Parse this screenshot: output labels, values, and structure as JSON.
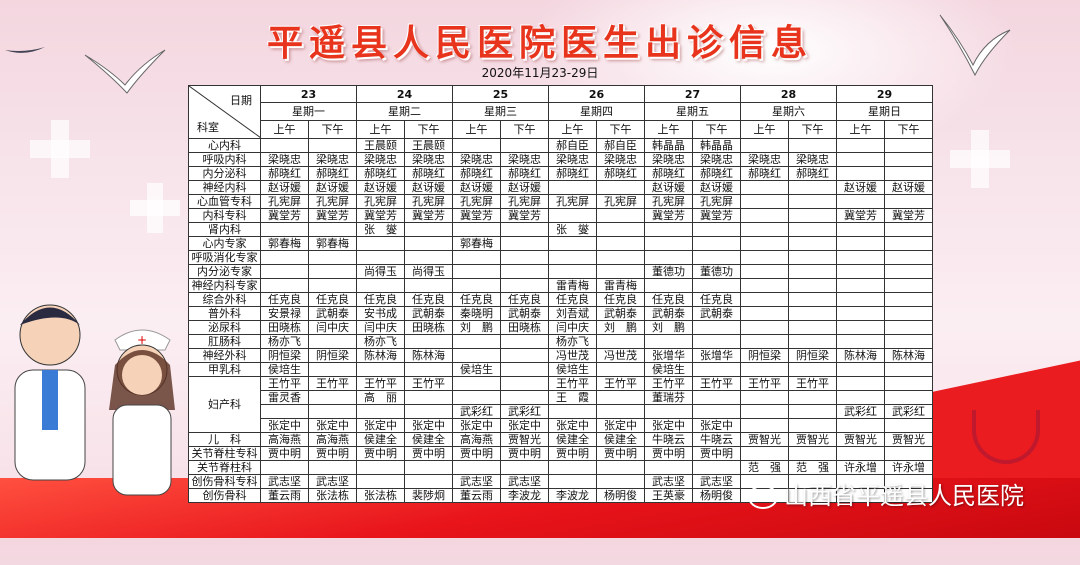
{
  "title": "平遥县人民医院医生出诊信息",
  "subtitle": "2020年11月23-29日",
  "corner": {
    "top": "日期",
    "bottom": "科室"
  },
  "dates": [
    "23",
    "24",
    "25",
    "26",
    "27",
    "28",
    "29"
  ],
  "weekdays": [
    "星期一",
    "星期二",
    "星期三",
    "星期四",
    "星期五",
    "星期六",
    "星期日"
  ],
  "halves": [
    "上午",
    "下午"
  ],
  "rows": [
    {
      "dept": "心内科",
      "cells": [
        "",
        "",
        "王晨颐",
        "王晨颐",
        "",
        "",
        "郝自臣",
        "郝自臣",
        "韩晶晶",
        "韩晶晶",
        "",
        "",
        "",
        ""
      ]
    },
    {
      "dept": "呼吸内科",
      "cells": [
        "梁晓忠",
        "梁晓忠",
        "梁晓忠",
        "梁晓忠",
        "梁晓忠",
        "梁晓忠",
        "梁晓忠",
        "梁晓忠",
        "梁晓忠",
        "梁晓忠",
        "梁晓忠",
        "梁晓忠",
        "",
        ""
      ]
    },
    {
      "dept": "内分泌科",
      "cells": [
        "郝晓红",
        "郝晓红",
        "郝晓红",
        "郝晓红",
        "郝晓红",
        "郝晓红",
        "郝晓红",
        "郝晓红",
        "郝晓红",
        "郝晓红",
        "郝晓红",
        "郝晓红",
        "",
        ""
      ]
    },
    {
      "dept": "神经内科",
      "cells": [
        "赵讶媛",
        "赵讶媛",
        "赵讶媛",
        "赵讶媛",
        "赵讶媛",
        "赵讶媛",
        "",
        "",
        "赵讶媛",
        "赵讶媛",
        "",
        "",
        "赵讶媛",
        "赵讶媛"
      ]
    },
    {
      "dept": "心血管专科",
      "cells": [
        "孔宪屏",
        "孔宪屏",
        "孔宪屏",
        "孔宪屏",
        "孔宪屏",
        "孔宪屏",
        "孔宪屏",
        "孔宪屏",
        "孔宪屏",
        "孔宪屏",
        "",
        "",
        "",
        ""
      ]
    },
    {
      "dept": "内科专科",
      "cells": [
        "冀堂芳",
        "冀堂芳",
        "冀堂芳",
        "冀堂芳",
        "冀堂芳",
        "冀堂芳",
        "",
        "",
        "冀堂芳",
        "冀堂芳",
        "",
        "",
        "冀堂芳",
        "冀堂芳"
      ]
    },
    {
      "dept": "肾内科",
      "cells": [
        "",
        "",
        "张　燮",
        "",
        "",
        "",
        "张　燮",
        "",
        "",
        "",
        "",
        "",
        "",
        ""
      ]
    },
    {
      "dept": "心内专家",
      "cells": [
        "郭春梅",
        "郭春梅",
        "",
        "",
        "郭春梅",
        "",
        "",
        "",
        "",
        "",
        "",
        "",
        "",
        ""
      ]
    },
    {
      "dept": "呼吸消化专家",
      "cells": [
        "",
        "",
        "",
        "",
        "",
        "",
        "",
        "",
        "",
        "",
        "",
        "",
        "",
        ""
      ]
    },
    {
      "dept": "内分泌专家",
      "cells": [
        "",
        "",
        "尚得玉",
        "尚得玉",
        "",
        "",
        "",
        "",
        "董德功",
        "董德功",
        "",
        "",
        "",
        ""
      ]
    },
    {
      "dept": "神经内科专家",
      "cells": [
        "",
        "",
        "",
        "",
        "",
        "",
        "雷青梅",
        "雷青梅",
        "",
        "",
        "",
        "",
        "",
        ""
      ]
    },
    {
      "dept": "综合外科",
      "cells": [
        "任克良",
        "任克良",
        "任克良",
        "任克良",
        "任克良",
        "任克良",
        "任克良",
        "任克良",
        "任克良",
        "任克良",
        "",
        "",
        "",
        ""
      ]
    },
    {
      "dept": "普外科",
      "cells": [
        "安景禄",
        "武朝泰",
        "安书成",
        "武朝泰",
        "秦晓明",
        "武朝泰",
        "刘吾斌",
        "武朝泰",
        "武朝泰",
        "武朝泰",
        "",
        "",
        "",
        ""
      ]
    },
    {
      "dept": "泌尿科",
      "cells": [
        "田晓栋",
        "闫中庆",
        "闫中庆",
        "田晓栋",
        "刘　鹏",
        "田晓栋",
        "闫中庆",
        "刘　鹏",
        "刘　鹏",
        "",
        "",
        "",
        "",
        ""
      ]
    },
    {
      "dept": "肛肠科",
      "cells": [
        "杨亦飞",
        "",
        "杨亦飞",
        "",
        "",
        "",
        "杨亦飞",
        "",
        "",
        "",
        "",
        "",
        "",
        ""
      ]
    },
    {
      "dept": "神经外科",
      "cells": [
        "阴恒梁",
        "阴恒梁",
        "陈林海",
        "陈林海",
        "",
        "",
        "冯世茂",
        "冯世茂",
        "张增华",
        "张增华",
        "阴恒梁",
        "阴恒梁",
        "陈林海",
        "陈林海"
      ]
    },
    {
      "dept": "甲乳科",
      "cells": [
        "侯培生",
        "",
        "",
        "",
        "侯培生",
        "",
        "侯培生",
        "",
        "侯培生",
        "",
        "",
        "",
        "",
        ""
      ]
    },
    {
      "dept": "妇产科",
      "subrows": [
        [
          "王竹平",
          "王竹平",
          "王竹平",
          "王竹平",
          "",
          "",
          "王竹平",
          "王竹平",
          "王竹平",
          "王竹平",
          "王竹平",
          "王竹平",
          "",
          ""
        ],
        [
          "雷灵香",
          "",
          "高　丽",
          "",
          "",
          "",
          "王　霞",
          "",
          "董瑞芬",
          "",
          "",
          "",
          "",
          ""
        ],
        [
          "",
          "",
          "",
          "",
          "武彩红",
          "武彩红",
          "",
          "",
          "",
          "",
          "",
          "",
          "武彩红",
          "武彩红"
        ],
        [
          "张定中",
          "张定中",
          "张定中",
          "张定中",
          "张定中",
          "张定中",
          "张定中",
          "张定中",
          "张定中",
          "张定中",
          "",
          "",
          "",
          ""
        ]
      ]
    },
    {
      "dept": "儿　科",
      "cells": [
        "高海燕",
        "高海燕",
        "侯建全",
        "侯建全",
        "高海燕",
        "贾智光",
        "侯建全",
        "侯建全",
        "牛晓云",
        "牛晓云",
        "贾智光",
        "贾智光",
        "贾智光",
        "贾智光"
      ]
    },
    {
      "dept": "关节脊柱专科",
      "cells": [
        "贾中明",
        "贾中明",
        "贾中明",
        "贾中明",
        "贾中明",
        "贾中明",
        "贾中明",
        "贾中明",
        "贾中明",
        "贾中明",
        "",
        "",
        "",
        ""
      ]
    },
    {
      "dept": "关节脊柱科",
      "cells": [
        "",
        "",
        "",
        "",
        "",
        "",
        "",
        "",
        "",
        "",
        "范　强",
        "范　强",
        "许永增",
        "许永增"
      ]
    },
    {
      "dept": "创伤骨科专科",
      "cells": [
        "武志坚",
        "武志坚",
        "",
        "",
        "武志坚",
        "武志坚",
        "",
        "",
        "武志坚",
        "武志坚",
        "",
        "",
        "",
        ""
      ]
    },
    {
      "dept": "创伤骨科",
      "cells": [
        "董云雨",
        "张法栋",
        "张法栋",
        "裴陟炯",
        "董云雨",
        "李波龙",
        "李波龙",
        "杨明俊",
        "王英豪",
        "杨明俊",
        "",
        "",
        "",
        ""
      ]
    }
  ],
  "watermark": "山西省平遥县人民医院",
  "colors": {
    "title": "#e8341c",
    "band": "#e8141a",
    "background": "#f7e3ea"
  }
}
